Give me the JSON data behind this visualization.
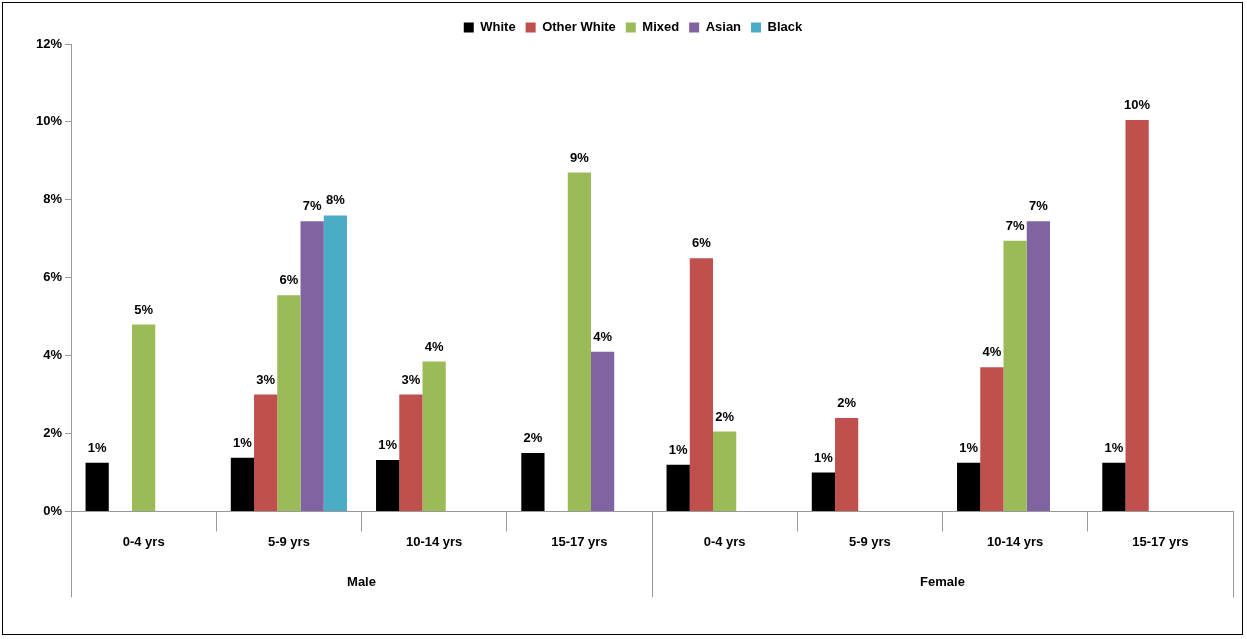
{
  "chart_data": {
    "type": "bar",
    "categories": [
      "0-4 yrs",
      "5-9 yrs",
      "10-14 yrs",
      "15-17 yrs",
      "0-4 yrs",
      "5-9 yrs",
      "10-14 yrs",
      "15-17 yrs"
    ],
    "series": [
      {
        "name": "White",
        "color": "#000000",
        "values": [
          1.25,
          1.38,
          1.32,
          1.5,
          1.2,
          1.0,
          1.25,
          1.25
        ],
        "value_labels": [
          "1%",
          "1%",
          "1%",
          "2%",
          "1%",
          "1%",
          "1%",
          "1%"
        ]
      },
      {
        "name": "Other White",
        "color": "#c0504d",
        "values": [
          null,
          3.0,
          3.0,
          null,
          6.5,
          2.4,
          3.7,
          10.05
        ],
        "value_labels": [
          null,
          "3%",
          "3%",
          null,
          "6%",
          "2%",
          "4%",
          "10%"
        ]
      },
      {
        "name": "Mixed",
        "color": "#9bbb59",
        "values": [
          4.8,
          5.55,
          3.85,
          8.7,
          2.05,
          null,
          6.95,
          null
        ],
        "value_labels": [
          "5%",
          "6%",
          "4%",
          "9%",
          "2%",
          null,
          "7%",
          null
        ]
      },
      {
        "name": "Asian",
        "color": "#8064a2",
        "values": [
          null,
          7.45,
          null,
          4.1,
          null,
          null,
          7.45,
          null
        ],
        "value_labels": [
          null,
          "7%",
          null,
          "4%",
          null,
          null,
          "7%",
          null
        ]
      },
      {
        "name": "Black",
        "color": "#4bacc6",
        "values": [
          null,
          7.6,
          null,
          null,
          null,
          null,
          null,
          null
        ],
        "value_labels": [
          null,
          "8%",
          null,
          null,
          null,
          null,
          null,
          null
        ]
      }
    ],
    "annotations": [
      "Male",
      "Female"
    ],
    "ylim": [
      0,
      12
    ],
    "yticks": [
      {
        "value": 0,
        "label": "0%"
      },
      {
        "value": 2,
        "label": "2%"
      },
      {
        "value": 4,
        "label": "4%"
      },
      {
        "value": 6,
        "label": "6%"
      },
      {
        "value": 8,
        "label": "8%"
      },
      {
        "value": 10,
        "label": "10%"
      },
      {
        "value": 12,
        "label": "12%"
      }
    ],
    "grid": false,
    "legend": "top"
  }
}
